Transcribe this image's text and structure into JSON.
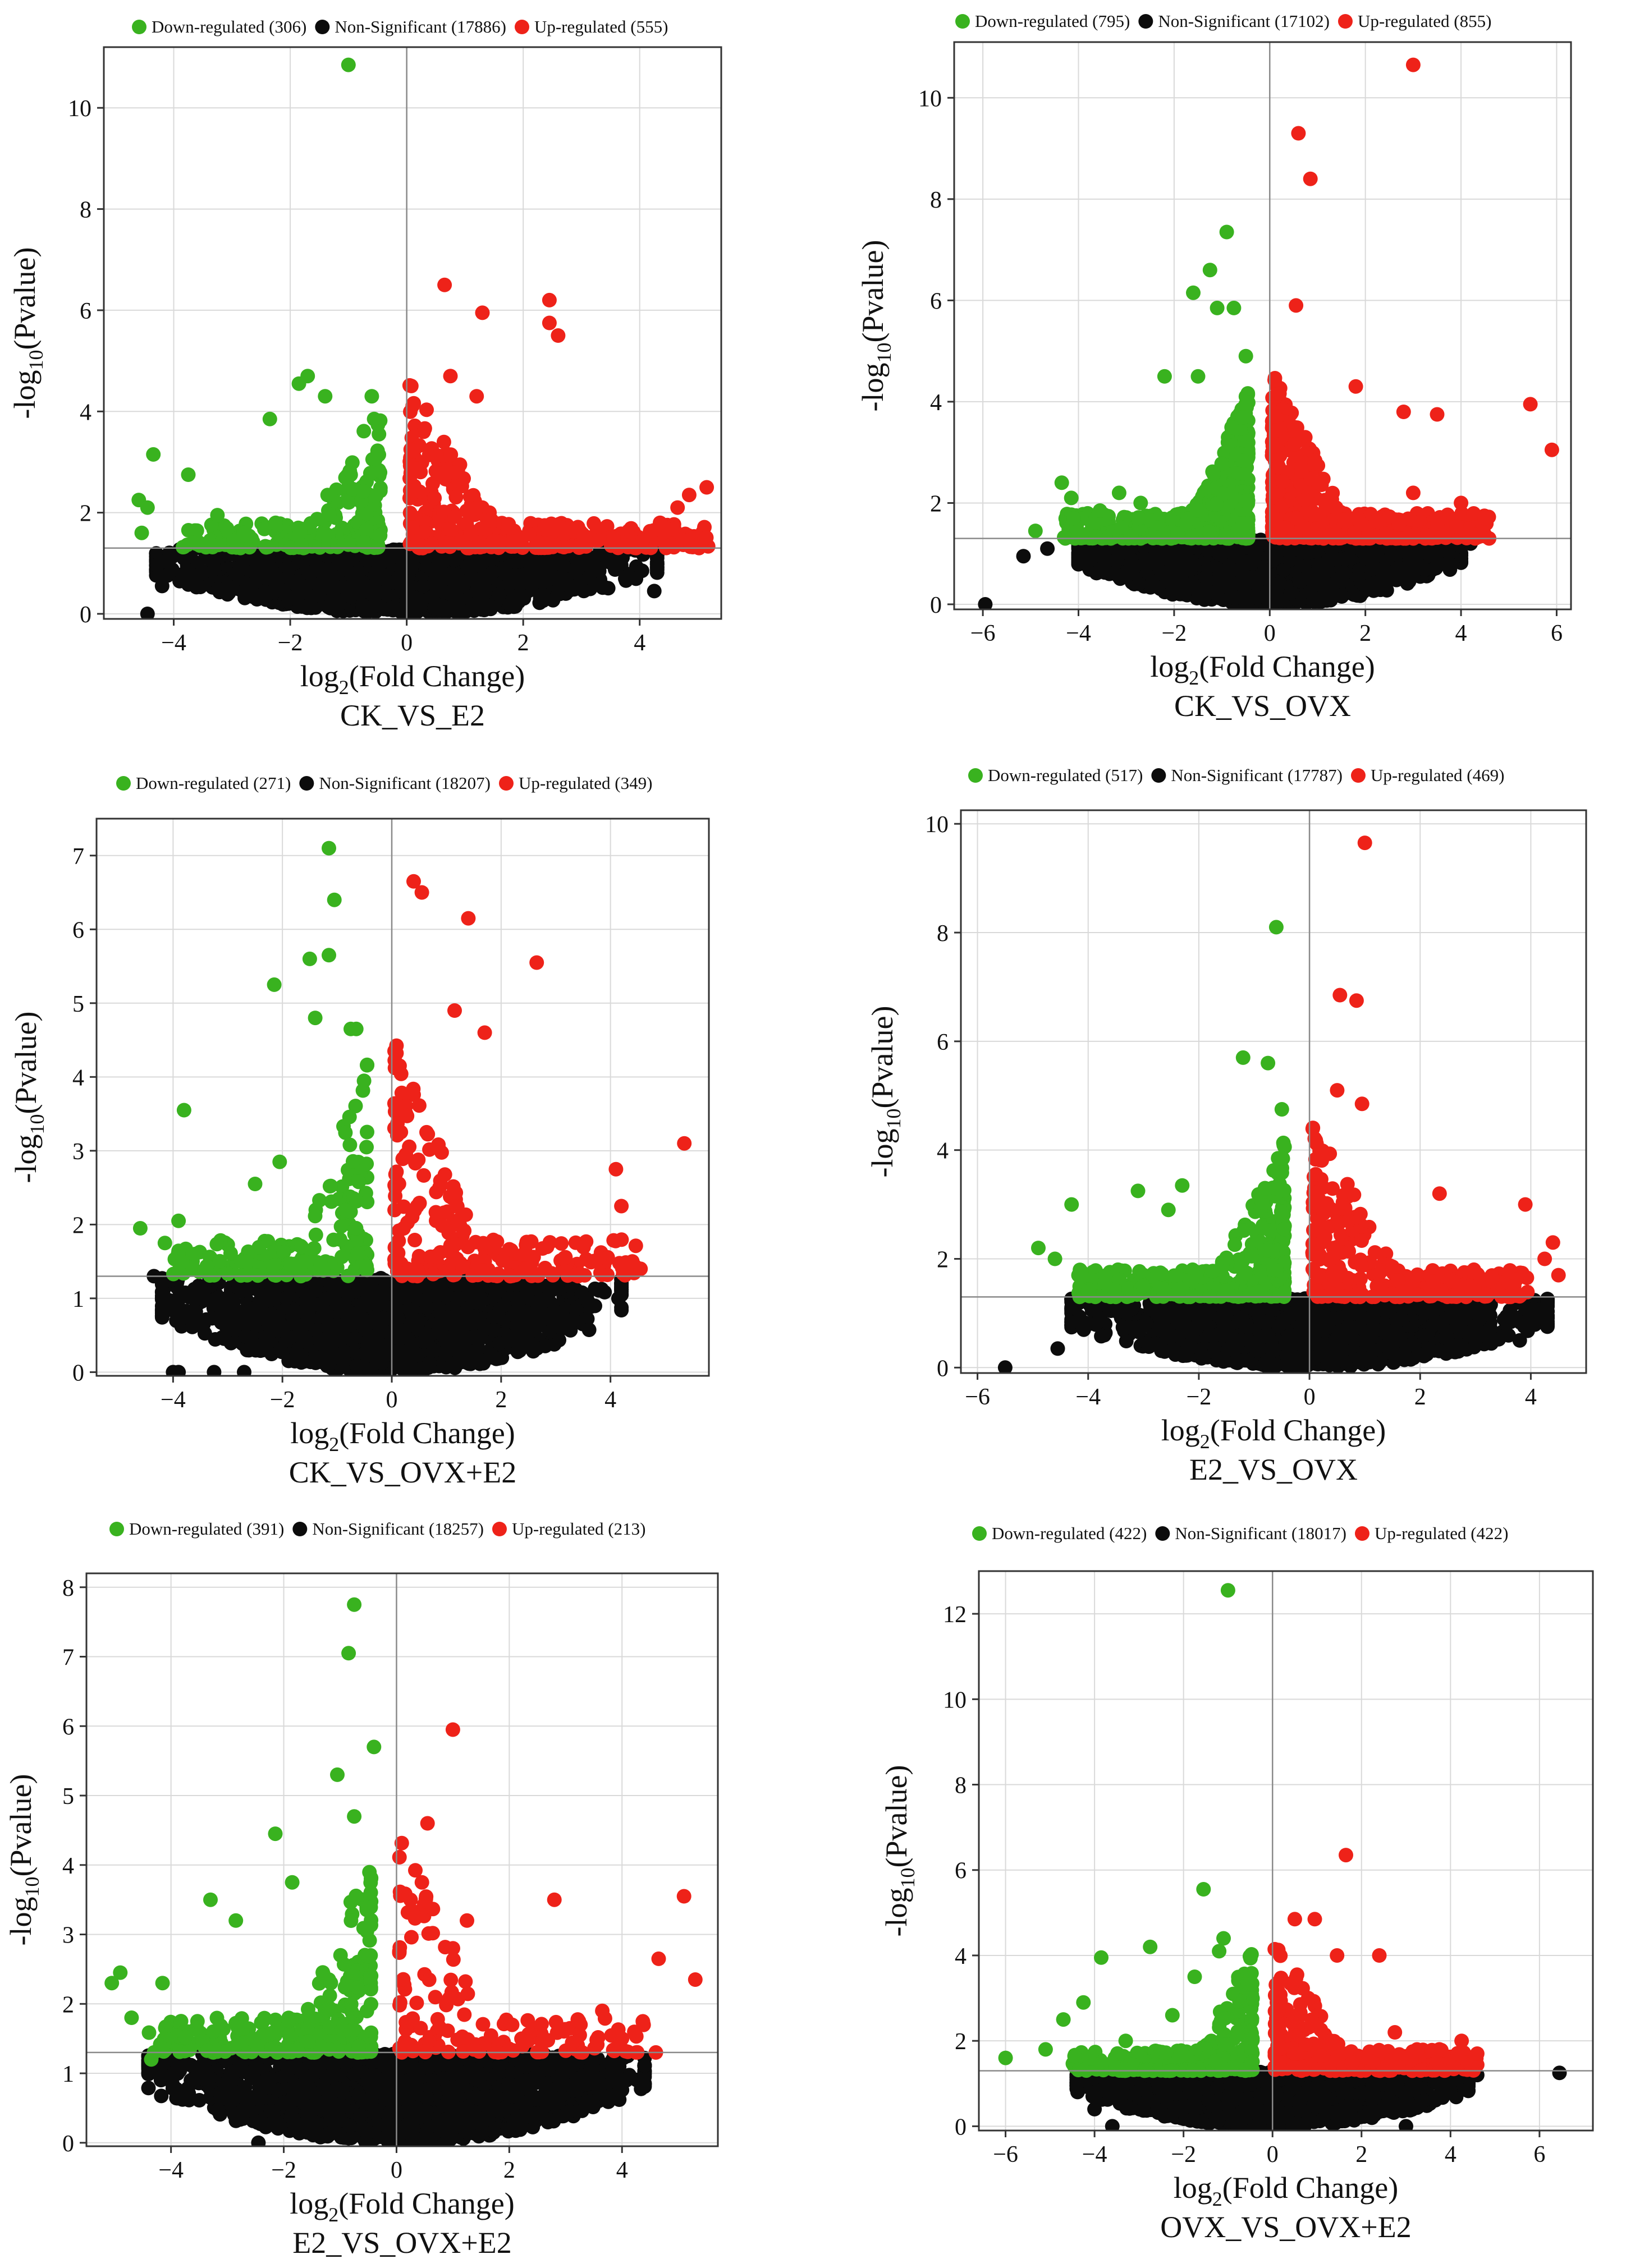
{
  "colors": {
    "down": "#39b21f",
    "nonsig": "#0c0c0c",
    "up": "#ee2219",
    "grid": "#d9d9d9",
    "frame": "#333333",
    "refline": "#8a8a8a"
  },
  "axis_labels": {
    "y_prefix": "-log",
    "y_sub": "10",
    "y_suffix": "(Pvalue)",
    "x_prefix": "log",
    "x_sub": "2",
    "x_suffix": "(Fold Change)"
  },
  "chart_data": [
    {
      "type": "scatter",
      "title": "CK_VS_E2",
      "xlabel": "log2(Fold Change)",
      "ylabel": "-log10(Pvalue)",
      "xlim": [
        -5.2,
        5.4
      ],
      "ylim": [
        -0.1,
        11.2
      ],
      "xticks": [
        -4,
        -2,
        0,
        2,
        4
      ],
      "yticks": [
        0,
        2,
        4,
        6,
        8,
        10
      ],
      "pvalue_threshold": 1.3,
      "legend": [
        {
          "key": "down",
          "label": "Down-regulated (306)"
        },
        {
          "key": "nonsig",
          "label": "Non-Significant (17886)"
        },
        {
          "key": "up",
          "label": "Up-regulated (555)"
        }
      ],
      "counts": {
        "down": 306,
        "nonsig": 17886,
        "up": 555
      },
      "highlights": {
        "down": [
          [
            -1.0,
            10.85
          ],
          [
            -1.7,
            4.7
          ],
          [
            -1.85,
            4.55
          ],
          [
            -2.35,
            3.85
          ],
          [
            -4.35,
            3.15
          ],
          [
            -3.75,
            2.75
          ],
          [
            -1.4,
            4.3
          ],
          [
            -0.6,
            4.3
          ],
          [
            -4.6,
            2.25
          ],
          [
            -4.45,
            2.1
          ],
          [
            -3.25,
            1.95
          ],
          [
            -2.25,
            1.8
          ],
          [
            -4.55,
            1.6
          ],
          [
            -2.8,
            1.6
          ]
        ],
        "up": [
          [
            0.65,
            6.5
          ],
          [
            1.3,
            5.95
          ],
          [
            2.45,
            6.2
          ],
          [
            2.45,
            5.75
          ],
          [
            2.6,
            5.5
          ],
          [
            0.75,
            4.7
          ],
          [
            1.2,
            4.3
          ],
          [
            5.15,
            2.5
          ],
          [
            4.85,
            2.35
          ],
          [
            4.65,
            2.1
          ],
          [
            4.35,
            1.8
          ],
          [
            3.55,
            1.5
          ],
          [
            4.05,
            1.45
          ]
        ],
        "nonsig": [
          [
            -4.45,
            0.0
          ],
          [
            -4.2,
            0.55
          ],
          [
            4.25,
            0.45
          ]
        ]
      },
      "sig_max": {
        "down": 3.9,
        "up": 5.2
      },
      "nonsig_halfwidth": 4.3
    },
    {
      "type": "scatter",
      "title": "CK_VS_OVX",
      "xlabel": "log2(Fold Change)",
      "ylabel": "-log10(Pvalue)",
      "xlim": [
        -6.6,
        6.3
      ],
      "ylim": [
        -0.1,
        11.1
      ],
      "xticks": [
        -6,
        -4,
        -2,
        0,
        2,
        4,
        6
      ],
      "yticks": [
        0,
        2,
        4,
        6,
        8,
        10
      ],
      "pvalue_threshold": 1.3,
      "legend": [
        {
          "key": "down",
          "label": "Down-regulated (795)"
        },
        {
          "key": "nonsig",
          "label": "Non-Significant (17102)"
        },
        {
          "key": "up",
          "label": "Up-regulated (855)"
        }
      ],
      "counts": {
        "down": 795,
        "nonsig": 17102,
        "up": 855
      },
      "highlights": {
        "down": [
          [
            -0.9,
            7.35
          ],
          [
            -1.25,
            6.6
          ],
          [
            -1.6,
            6.15
          ],
          [
            -1.1,
            5.85
          ],
          [
            -0.75,
            5.85
          ],
          [
            -0.5,
            4.9
          ],
          [
            -2.2,
            4.5
          ],
          [
            -1.5,
            4.5
          ],
          [
            -4.35,
            2.4
          ],
          [
            -4.15,
            2.1
          ],
          [
            -3.15,
            2.2
          ],
          [
            -3.55,
            1.85
          ],
          [
            -4.9,
            1.45
          ],
          [
            -4.1,
            1.7
          ],
          [
            -2.7,
            2.0
          ]
        ],
        "up": [
          [
            3.0,
            10.65
          ],
          [
            0.6,
            9.3
          ],
          [
            0.85,
            8.4
          ],
          [
            0.55,
            5.9
          ],
          [
            1.8,
            4.3
          ],
          [
            5.45,
            3.95
          ],
          [
            5.9,
            3.05
          ],
          [
            3.5,
            3.75
          ],
          [
            2.8,
            3.8
          ],
          [
            4.5,
            1.7
          ],
          [
            4.0,
            2.0
          ],
          [
            3.0,
            2.2
          ]
        ],
        "nonsig": [
          [
            -5.95,
            0.0
          ],
          [
            -5.15,
            0.95
          ],
          [
            -4.65,
            1.1
          ],
          [
            4.2,
            1.2
          ],
          [
            3.7,
            0.8
          ]
        ]
      },
      "sig_max": {
        "down": 4.3,
        "up": 4.6
      },
      "nonsig_halfwidth": 4.0
    },
    {
      "type": "scatter",
      "title": "CK_VS_OVX+E2",
      "xlabel": "log2(Fold Change)",
      "ylabel": "-log10(Pvalue)",
      "xlim": [
        -5.4,
        5.8
      ],
      "ylim": [
        -0.05,
        7.5
      ],
      "xticks": [
        -4,
        -2,
        0,
        2,
        4
      ],
      "yticks": [
        0,
        1,
        2,
        3,
        4,
        5,
        6,
        7
      ],
      "pvalue_threshold": 1.3,
      "legend": [
        {
          "key": "down",
          "label": "Down-regulated (271)"
        },
        {
          "key": "nonsig",
          "label": "Non-Significant (18207)"
        },
        {
          "key": "up",
          "label": "Up-regulated (349)"
        }
      ],
      "counts": {
        "down": 271,
        "nonsig": 18207,
        "up": 349
      },
      "highlights": {
        "down": [
          [
            -1.15,
            7.1
          ],
          [
            -1.05,
            6.4
          ],
          [
            -1.5,
            5.6
          ],
          [
            -1.15,
            5.65
          ],
          [
            -2.15,
            5.25
          ],
          [
            -1.4,
            4.8
          ],
          [
            -0.75,
            4.65
          ],
          [
            -0.65,
            4.65
          ],
          [
            -3.8,
            3.55
          ],
          [
            -2.05,
            2.85
          ],
          [
            -2.5,
            2.55
          ],
          [
            -4.6,
            1.95
          ],
          [
            -3.9,
            2.05
          ],
          [
            -3.6,
            1.6
          ],
          [
            -4.15,
            1.75
          ]
        ],
        "up": [
          [
            0.4,
            6.65
          ],
          [
            0.55,
            6.5
          ],
          [
            1.4,
            6.15
          ],
          [
            2.65,
            5.55
          ],
          [
            1.15,
            4.9
          ],
          [
            1.7,
            4.6
          ],
          [
            5.35,
            3.1
          ],
          [
            4.1,
            2.75
          ],
          [
            4.2,
            2.25
          ],
          [
            4.55,
            1.4
          ],
          [
            4.4,
            1.5
          ],
          [
            3.8,
            1.55
          ]
        ],
        "nonsig": [
          [
            -3.9,
            0.0
          ],
          [
            -4.0,
            0.0
          ],
          [
            -3.25,
            0.0
          ],
          [
            -2.7,
            0.0
          ],
          [
            -4.35,
            1.3
          ]
        ]
      },
      "sig_max": {
        "down": 4.0,
        "up": 4.5
      },
      "nonsig_halfwidth": 4.2
    },
    {
      "type": "scatter",
      "title": "E2_VS_OVX",
      "xlabel": "log2(Fold Change)",
      "ylabel": "-log10(Pvalue)",
      "xlim": [
        -6.3,
        5.0
      ],
      "ylim": [
        -0.1,
        10.25
      ],
      "xticks": [
        -6,
        -4,
        -2,
        0,
        2,
        4
      ],
      "yticks": [
        0,
        2,
        4,
        6,
        8,
        10
      ],
      "pvalue_threshold": 1.3,
      "legend": [
        {
          "key": "down",
          "label": "Down-regulated (517)"
        },
        {
          "key": "nonsig",
          "label": "Non-Significant (17787)"
        },
        {
          "key": "up",
          "label": "Up-regulated (469)"
        }
      ],
      "counts": {
        "down": 517,
        "nonsig": 17787,
        "up": 469
      },
      "highlights": {
        "down": [
          [
            -0.6,
            8.1
          ],
          [
            -1.2,
            5.7
          ],
          [
            -0.75,
            5.6
          ],
          [
            -0.5,
            4.75
          ],
          [
            -4.3,
            3.0
          ],
          [
            -3.1,
            3.25
          ],
          [
            -2.3,
            3.35
          ],
          [
            -2.55,
            2.9
          ],
          [
            -4.9,
            2.2
          ],
          [
            -4.6,
            2.0
          ],
          [
            -3.7,
            1.55
          ],
          [
            -4.0,
            1.4
          ]
        ],
        "up": [
          [
            1.0,
            9.65
          ],
          [
            0.55,
            6.85
          ],
          [
            0.85,
            6.75
          ],
          [
            0.5,
            5.1
          ],
          [
            0.95,
            4.85
          ],
          [
            3.9,
            3.0
          ],
          [
            2.35,
            3.2
          ],
          [
            4.4,
            2.3
          ],
          [
            4.25,
            2.0
          ],
          [
            4.5,
            1.7
          ],
          [
            3.7,
            1.5
          ],
          [
            2.9,
            1.5
          ]
        ],
        "nonsig": [
          [
            -5.5,
            0.0
          ],
          [
            -4.55,
            0.35
          ],
          [
            3.8,
            0.5
          ]
        ]
      },
      "sig_max": {
        "down": 4.2,
        "up": 4.0
      },
      "nonsig_halfwidth": 4.3
    },
    {
      "type": "scatter",
      "title": "E2_VS_OVX+E2",
      "xlabel": "log2(Fold Change)",
      "ylabel": "-log10(Pvalue)",
      "xlim": [
        -5.5,
        5.7
      ],
      "ylim": [
        -0.05,
        8.2
      ],
      "xticks": [
        -4,
        -2,
        0,
        2,
        4
      ],
      "yticks": [
        0,
        1,
        2,
        3,
        4,
        5,
        6,
        7,
        8
      ],
      "pvalue_threshold": 1.3,
      "legend": [
        {
          "key": "down",
          "label": "Down-regulated (391)"
        },
        {
          "key": "nonsig",
          "label": "Non-Significant (18257)"
        },
        {
          "key": "up",
          "label": "Up-regulated (213)"
        }
      ],
      "counts": {
        "down": 391,
        "nonsig": 18257,
        "up": 213
      },
      "highlights": {
        "down": [
          [
            -0.75,
            7.75
          ],
          [
            -0.85,
            7.05
          ],
          [
            -0.4,
            5.7
          ],
          [
            -1.05,
            5.3
          ],
          [
            -2.15,
            4.45
          ],
          [
            -0.75,
            4.7
          ],
          [
            -3.3,
            3.5
          ],
          [
            -1.85,
            3.75
          ],
          [
            -2.85,
            3.2
          ],
          [
            -4.9,
            2.45
          ],
          [
            -5.05,
            2.3
          ],
          [
            -4.15,
            2.3
          ],
          [
            -4.7,
            1.8
          ],
          [
            -3.25,
            1.6
          ],
          [
            -4.35,
            1.2
          ]
        ],
        "up": [
          [
            1.0,
            5.95
          ],
          [
            0.55,
            4.6
          ],
          [
            0.45,
            3.75
          ],
          [
            1.25,
            3.2
          ],
          [
            2.8,
            3.5
          ],
          [
            5.1,
            3.55
          ],
          [
            4.65,
            2.65
          ],
          [
            5.3,
            2.35
          ],
          [
            3.65,
            1.9
          ],
          [
            3.25,
            1.55
          ],
          [
            4.0,
            1.5
          ],
          [
            4.6,
            1.3
          ]
        ],
        "nonsig": [
          [
            -2.45,
            0.0
          ],
          [
            -4.05,
            1.2
          ],
          [
            3.95,
            1.1
          ],
          [
            4.1,
            1.25
          ]
        ]
      },
      "sig_max": {
        "down": 4.4,
        "up": 4.4
      },
      "nonsig_halfwidth": 4.4
    },
    {
      "type": "scatter",
      "title": "OVX_VS_OVX+E2",
      "xlabel": "log2(Fold Change)",
      "ylabel": "-log10(Pvalue)",
      "xlim": [
        -6.6,
        7.2
      ],
      "ylim": [
        -0.1,
        13.0
      ],
      "xticks": [
        -6,
        -4,
        -2,
        0,
        2,
        4,
        6
      ],
      "yticks": [
        0,
        2,
        4,
        6,
        8,
        10,
        12
      ],
      "pvalue_threshold": 1.3,
      "legend": [
        {
          "key": "down",
          "label": "Down-regulated (422)"
        },
        {
          "key": "nonsig",
          "label": "Non-Significant (18017)"
        },
        {
          "key": "up",
          "label": "Up-regulated (422)"
        }
      ],
      "counts": {
        "down": 422,
        "nonsig": 18017,
        "up": 422
      },
      "highlights": {
        "down": [
          [
            -1.0,
            12.55
          ],
          [
            -1.55,
            5.55
          ],
          [
            -1.1,
            4.4
          ],
          [
            -2.75,
            4.2
          ],
          [
            -3.85,
            3.95
          ],
          [
            -1.2,
            4.1
          ],
          [
            -6.0,
            1.6
          ],
          [
            -5.1,
            1.8
          ],
          [
            -4.7,
            2.5
          ],
          [
            -4.25,
            2.9
          ],
          [
            -3.3,
            2.0
          ],
          [
            -2.25,
            2.6
          ],
          [
            -1.75,
            3.5
          ]
        ],
        "up": [
          [
            1.65,
            6.35
          ],
          [
            2.4,
            4.0
          ],
          [
            0.95,
            4.85
          ],
          [
            0.5,
            4.85
          ],
          [
            1.45,
            4.0
          ],
          [
            4.6,
            1.7
          ],
          [
            4.25,
            2.0
          ],
          [
            3.75,
            1.8
          ],
          [
            2.75,
            2.2
          ],
          [
            3.15,
            1.75
          ]
        ],
        "nonsig": [
          [
            6.45,
            1.25
          ],
          [
            -3.6,
            0.0
          ],
          [
            -4.0,
            0.4
          ],
          [
            3.0,
            0.0
          ],
          [
            -2.95,
            0.9
          ],
          [
            4.6,
            1.2
          ]
        ]
      },
      "sig_max": {
        "down": 4.5,
        "up": 4.6
      },
      "nonsig_halfwidth": 4.4
    }
  ]
}
